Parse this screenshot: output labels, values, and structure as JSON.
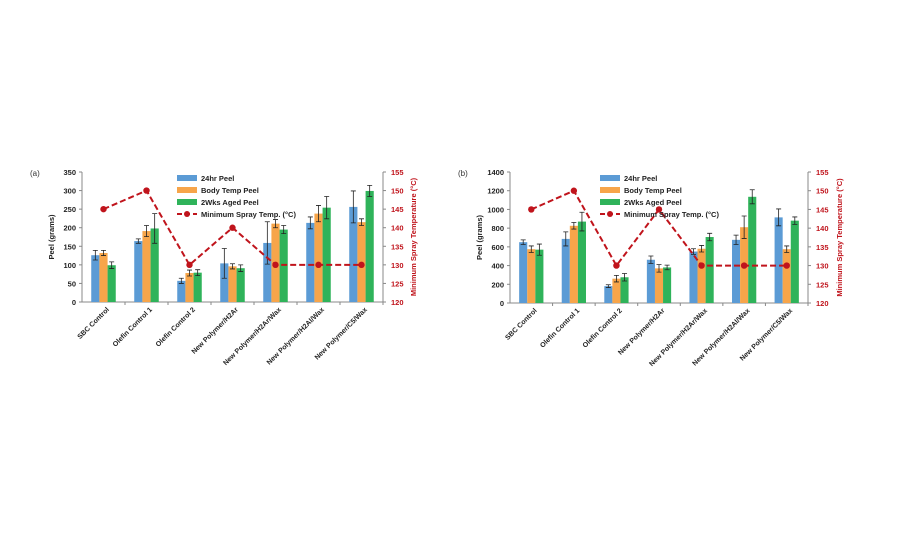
{
  "colors": {
    "s24hr": "#5b9bd5",
    "body": "#f7a54a",
    "aged": "#2fb35a",
    "temp": "#c0141c",
    "axis": "#888888"
  },
  "chart_data": [
    {
      "panel_label": "(a)",
      "type": "bar",
      "categories": [
        "SBC Control",
        "Olefin Control 1",
        "Olefin Control 2",
        "New Polymer/H2Ar",
        "New Polymer/H2Ar/Wax",
        "New Polymer/H2Al/Wax",
        "New Polymer/C5/Wax"
      ],
      "ylabel": "Peel (grams)",
      "ylim": [
        0,
        350
      ],
      "yticks": [
        0,
        50,
        100,
        150,
        200,
        250,
        300,
        350
      ],
      "y2label": "Minimum Spray Temperature (°C)",
      "y2lim": [
        120,
        155
      ],
      "y2ticks": [
        120,
        125,
        130,
        135,
        140,
        145,
        150,
        155
      ],
      "legend_position": "top-center",
      "grid": false,
      "series": [
        {
          "name": "24hr Peel",
          "type": "bar",
          "values": [
            126,
            164,
            57,
            104,
            159,
            213,
            256
          ],
          "errors": [
            13,
            6,
            7,
            40,
            57,
            16,
            43
          ]
        },
        {
          "name": "Body Temp Peel",
          "type": "bar",
          "values": [
            132,
            191,
            78,
            96,
            211,
            238,
            215
          ],
          "errors": [
            7,
            15,
            8,
            7,
            11,
            22,
            9
          ]
        },
        {
          "name": "2Wks Aged Peel",
          "type": "bar",
          "values": [
            99,
            198,
            79,
            91,
            195,
            254,
            299
          ],
          "errors": [
            9,
            40,
            8,
            9,
            11,
            30,
            15
          ]
        },
        {
          "name": "Minimum Spray Temp. (°C)",
          "type": "line",
          "axis": "right",
          "values": [
            145,
            150,
            130,
            140,
            130,
            130,
            130
          ]
        }
      ]
    },
    {
      "panel_label": "(b)",
      "type": "bar",
      "categories": [
        "SBC Control",
        "Olefin Control 1",
        "Olefin Control 2",
        "New Polymer/H2Ar",
        "New Polymer/H2Ar/Wax",
        "New Polymer/H2Al/Wax",
        "New Polymer/C5/Wax"
      ],
      "ylabel": "Peel (grams)",
      "ylim": [
        0,
        1400
      ],
      "yticks": [
        0,
        200,
        400,
        600,
        800,
        1000,
        1200,
        1400
      ],
      "y2label": "Minimum Spray Temperature (°C)",
      "y2lim": [
        120,
        155
      ],
      "y2ticks": [
        120,
        125,
        130,
        135,
        140,
        145,
        150,
        155
      ],
      "legend_position": "top-center",
      "grid": false,
      "series": [
        {
          "name": "24hr Peel",
          "type": "bar",
          "values": [
            650,
            685,
            180,
            462,
            550,
            675,
            915
          ],
          "errors": [
            25,
            75,
            15,
            40,
            30,
            50,
            90
          ]
        },
        {
          "name": "Body Temp Peel",
          "type": "bar",
          "values": [
            575,
            825,
            260,
            370,
            580,
            810,
            575
          ],
          "errors": [
            35,
            35,
            35,
            40,
            35,
            120,
            35
          ]
        },
        {
          "name": "2Wks Aged Peel",
          "type": "bar",
          "values": [
            570,
            870,
            275,
            380,
            705,
            1135,
            880
          ],
          "errors": [
            60,
            100,
            40,
            25,
            40,
            75,
            40
          ]
        },
        {
          "name": "Minimum Spray Temp. (°C)",
          "type": "line",
          "axis": "right",
          "values": [
            145,
            150,
            130,
            145,
            130,
            130,
            130
          ]
        }
      ]
    }
  ]
}
